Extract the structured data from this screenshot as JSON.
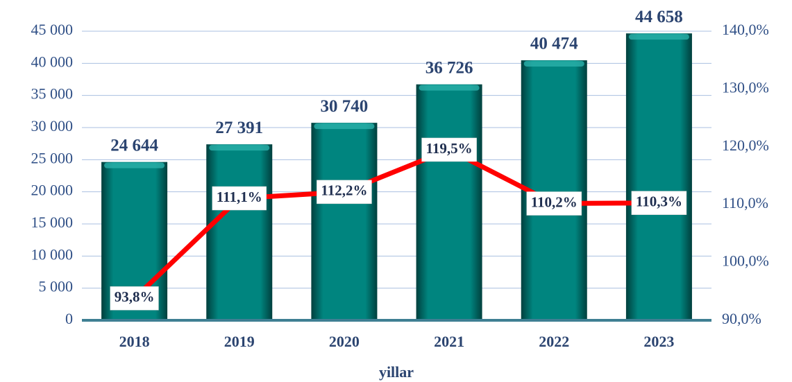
{
  "chart_data": {
    "type": "bar",
    "categories": [
      "2018",
      "2019",
      "2020",
      "2021",
      "2022",
      "2023"
    ],
    "x_label": "yillar",
    "series": [
      {
        "type": "bar",
        "color": "#00857f",
        "values": [
          24644,
          27391,
          30740,
          36726,
          40474,
          44658
        ],
        "value_labels": [
          "24 644",
          "27 391",
          "30 740",
          "36 726",
          "40 474",
          "44 658"
        ]
      },
      {
        "type": "line",
        "axis": "y2",
        "color": "#ff0000",
        "values": [
          93.8,
          111.1,
          112.2,
          119.5,
          110.2,
          110.3
        ],
        "value_labels": [
          "93,8%",
          "111,1%",
          "112,2%",
          "119,5%",
          "110,2%",
          "110,3%"
        ]
      }
    ],
    "ylim": [
      0,
      45000
    ],
    "yticks": [
      {
        "value": 0,
        "label": "0"
      },
      {
        "value": 5000,
        "label": "5 000"
      },
      {
        "value": 10000,
        "label": "10 000"
      },
      {
        "value": 15000,
        "label": "15 000"
      },
      {
        "value": 20000,
        "label": "20 000"
      },
      {
        "value": 25000,
        "label": "25 000"
      },
      {
        "value": 30000,
        "label": "30 000"
      },
      {
        "value": 35000,
        "label": "35 000"
      },
      {
        "value": 40000,
        "label": "40 000"
      },
      {
        "value": 45000,
        "label": "45 000"
      }
    ],
    "y2lim": [
      90,
      140
    ],
    "y2ticks": [
      {
        "value": 90,
        "label": "90,0%"
      },
      {
        "value": 100,
        "label": "100,0%"
      },
      {
        "value": 110,
        "label": "110,0%"
      },
      {
        "value": 120,
        "label": "120,0%"
      },
      {
        "value": 130,
        "label": "130,0%"
      },
      {
        "value": 140,
        "label": "140,0%"
      }
    ],
    "grid": true
  }
}
